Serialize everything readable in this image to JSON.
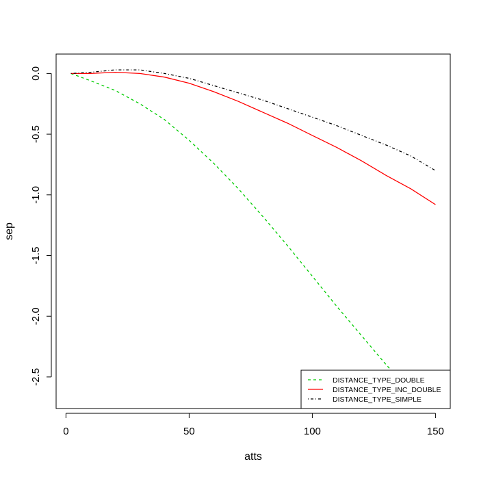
{
  "chart_data": {
    "type": "line",
    "title": "",
    "xlabel": "atts",
    "ylabel": "sep",
    "xlim": [
      -4,
      156
    ],
    "ylim": [
      -2.76,
      0.16
    ],
    "xticks": [
      0,
      50,
      100,
      150
    ],
    "yticks": [
      0.0,
      -0.5,
      -1.0,
      -1.5,
      -2.0,
      -2.5
    ],
    "xtick_labels": [
      "0",
      "50",
      "100",
      "150"
    ],
    "ytick_labels": [
      "0.0",
      "-0.5",
      "-1.0",
      "-1.5",
      "-2.0",
      "-2.5"
    ],
    "grid": false,
    "legend_position": "bottom-right",
    "series": [
      {
        "name": "DISTANCE_TYPE_DOUBLE",
        "color": "#00cc00",
        "dash": "dashed",
        "x": [
          2,
          10,
          20,
          30,
          40,
          50,
          60,
          70,
          80,
          90,
          100,
          110,
          120,
          130,
          140,
          150
        ],
        "y": [
          0.0,
          -0.06,
          -0.14,
          -0.25,
          -0.38,
          -0.55,
          -0.74,
          -0.95,
          -1.18,
          -1.42,
          -1.67,
          -1.92,
          -2.16,
          -2.4,
          -2.62,
          -2.64
        ]
      },
      {
        "name": "DISTANCE_TYPE_INC_DOUBLE",
        "color": "#ff0000",
        "dash": "solid",
        "x": [
          2,
          10,
          20,
          30,
          40,
          50,
          60,
          70,
          80,
          90,
          100,
          110,
          120,
          130,
          140,
          150
        ],
        "y": [
          0.0,
          0.0,
          0.01,
          0.0,
          -0.03,
          -0.08,
          -0.15,
          -0.23,
          -0.32,
          -0.41,
          -0.51,
          -0.61,
          -0.72,
          -0.84,
          -0.95,
          -1.08
        ]
      },
      {
        "name": "DISTANCE_TYPE_SIMPLE",
        "color": "#000000",
        "dash": "dotdash",
        "x": [
          2,
          10,
          20,
          30,
          40,
          50,
          60,
          70,
          80,
          90,
          100,
          110,
          120,
          130,
          140,
          150
        ],
        "y": [
          0.0,
          0.01,
          0.03,
          0.03,
          0.0,
          -0.04,
          -0.1,
          -0.16,
          -0.22,
          -0.29,
          -0.36,
          -0.43,
          -0.51,
          -0.59,
          -0.68,
          -0.8
        ]
      }
    ]
  }
}
